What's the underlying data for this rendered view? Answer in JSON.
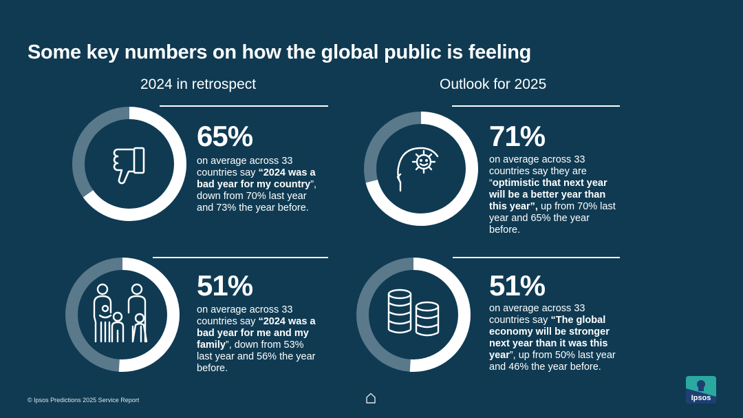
{
  "title": "Some key numbers on how the global public is feeling",
  "columns": {
    "left": "2024 in retrospect",
    "right": "Outlook for 2025"
  },
  "colors": {
    "background": "#0f3a52",
    "ring_filled": "#ffffff",
    "ring_remaining": "#5a7a8c",
    "logo": "#2aa9a0"
  },
  "cards": [
    {
      "percent": "65%",
      "value": 65,
      "icon": "thumbs-down-icon",
      "lines": [
        [
          {
            "t": "on average across 33"
          }
        ],
        [
          {
            "t": "countries say  "
          },
          {
            "t": "“2024 was a",
            "b": true
          }
        ],
        [
          {
            "t": "bad year for my country",
            "b": true
          },
          {
            "t": "”,"
          }
        ],
        [
          {
            "t": "down from 70% last year"
          }
        ],
        [
          {
            "t": "and 73% the year before."
          }
        ]
      ]
    },
    {
      "percent": "71%",
      "value": 71,
      "icon": "optimistic-head-sun-icon",
      "lines": [
        [
          {
            "t": "on average across 33"
          }
        ],
        [
          {
            "t": "countries say  they are"
          }
        ],
        [
          {
            "t": "“"
          },
          {
            "t": "optimistic that next year",
            "b": true
          }
        ],
        [
          {
            "t": "will be a better year than",
            "b": true
          }
        ],
        [
          {
            "t": "this year”,",
            "b": true
          },
          {
            "t": " up from 70% last"
          }
        ],
        [
          {
            "t": "year and 65% the year"
          }
        ],
        [
          {
            "t": "before."
          }
        ]
      ]
    },
    {
      "percent": "51%",
      "value": 51,
      "icon": "family-icon",
      "lines": [
        [
          {
            "t": "on average across 33"
          }
        ],
        [
          {
            "t": "countries say "
          },
          {
            "t": "“2024 was a",
            "b": true
          }
        ],
        [
          {
            "t": "bad year for me and my",
            "b": true
          }
        ],
        [
          {
            "t": "family",
            "b": true
          },
          {
            "t": "”, down from 53%"
          }
        ],
        [
          {
            "t": "last year and 56% the year"
          }
        ],
        [
          {
            "t": "before."
          }
        ]
      ]
    },
    {
      "percent": "51%",
      "value": 51,
      "icon": "coin-stacks-icon",
      "lines": [
        [
          {
            "t": "on average across 33"
          }
        ],
        [
          {
            "t": "countries say "
          },
          {
            "t": "“The global",
            "b": true
          }
        ],
        [
          {
            "t": "economy will be stronger",
            "b": true
          }
        ],
        [
          {
            "t": "next year than it was this",
            "b": true
          }
        ],
        [
          {
            "t": "year",
            "b": true
          },
          {
            "t": "”, up from 50% last year"
          }
        ],
        [
          {
            "t": "and 46% the year before."
          }
        ]
      ]
    }
  ],
  "footer": "© Ipsos Predictions 2025 Service Report",
  "logo_text": "Ipsos"
}
